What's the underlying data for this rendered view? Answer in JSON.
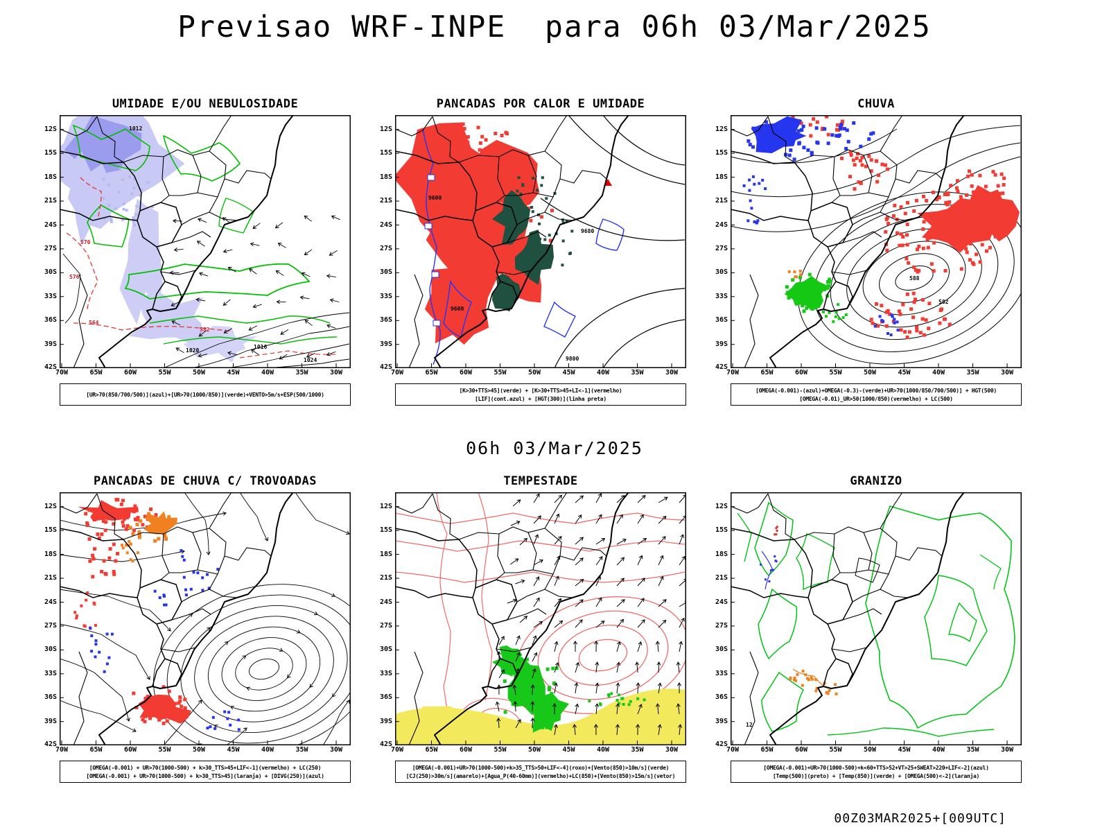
{
  "page": {
    "title": "Previsao WRF-INPE  para 06h 03/Mar/2025",
    "subtitle": "06h 03/Mar/2025",
    "footer": "00Z03MAR2025+[009UTC]"
  },
  "axes": {
    "lat_labels": [
      "12S",
      "15S",
      "18S",
      "21S",
      "24S",
      "27S",
      "30S",
      "33S",
      "36S",
      "39S",
      "42S"
    ],
    "lon_labels": [
      "70W",
      "65W",
      "60W",
      "55W",
      "50W",
      "45W",
      "40W",
      "35W",
      "30W"
    ]
  },
  "colors": {
    "azul": "#2536ee",
    "verde": "#00bf00",
    "vermelho": "#f23b32",
    "laranja": "#f08020",
    "amarelo": "#f2ea5c",
    "preto": "#000000",
    "roxo": "#8030c0",
    "sombreado_umidade": "#9c9cee",
    "teal_conveccao": "#20503f"
  },
  "panels": [
    {
      "id": "umidade",
      "title": "UMIDADE E/OU NEBULOSIDADE",
      "legend": [
        "[UR>70(850/700/500)](azul)+[UR>70(1000/850)](verde)+VENTO>5m/s+ESP(500/1000)"
      ],
      "contour_labels": [
        "1012",
        "1016",
        "1020",
        "1024",
        "570",
        "576",
        "564",
        "582"
      ]
    },
    {
      "id": "pancadas_calor",
      "title": "PANCADAS POR CALOR E UMIDADE",
      "legend": [
        "[K>30+TTS>45](verde) + [K>30+TTS>45+LI<-1](vermelho)",
        "[LIF](cont.azul) + [HGT(300)](linha preta)"
      ],
      "contour_labels": [
        "9600",
        "9680",
        "9600",
        "9800"
      ]
    },
    {
      "id": "chuva",
      "title": "CHUVA",
      "legend": [
        "[OMEGA(-0.001)-(azul)+OMEGA(-0.3)-(verde)+UR>70(1000/850/700/500)] + HGT(500)",
        "[OMEGA(-0.01)_UR>50(1000/850)(vermelho) + LC(500)"
      ],
      "contour_labels": [
        "588",
        "582"
      ]
    },
    {
      "id": "trovoadas",
      "title": "PANCADAS DE CHUVA C/ TROVOADAS",
      "legend": [
        "[OMEGA(-0.001) + UR>70(1000-500) + k>30_TTS>45+LIF<-1](vermelho) + LC(250)",
        "[OMEGA(-0.001) + UR>70(1000-500) + k>30_TTS>45](laranja) + [DIVG(250)](azul)"
      ],
      "contour_labels": []
    },
    {
      "id": "tempestade",
      "title": "TEMPESTADE",
      "legend": [
        "[OMEGA(-0.001)+UR>70(1000-500)+k>35_TTS>50+LIF<-4](roxo)+[Vento(850)>10m/s](verde)",
        "[CJ(250)>30m/s](amarelo)+[Agua_P(40-60mm)](vermelho)+LC(850)+[Vento(850)>15m/s](vetor)"
      ],
      "contour_labels": []
    },
    {
      "id": "granizo",
      "title": "GRANIZO",
      "legend": [
        "[OMEGA(-0.001)+UR>70(1000-500)+k<60+TTS>52+VT>25+SWEAT>220+LIF<-2](azul)",
        "[Temp(500)](preto) + [Temp(850)](verde) + [OMEGA(500)<-2](laranja)"
      ],
      "contour_labels": [
        "12"
      ]
    }
  ]
}
